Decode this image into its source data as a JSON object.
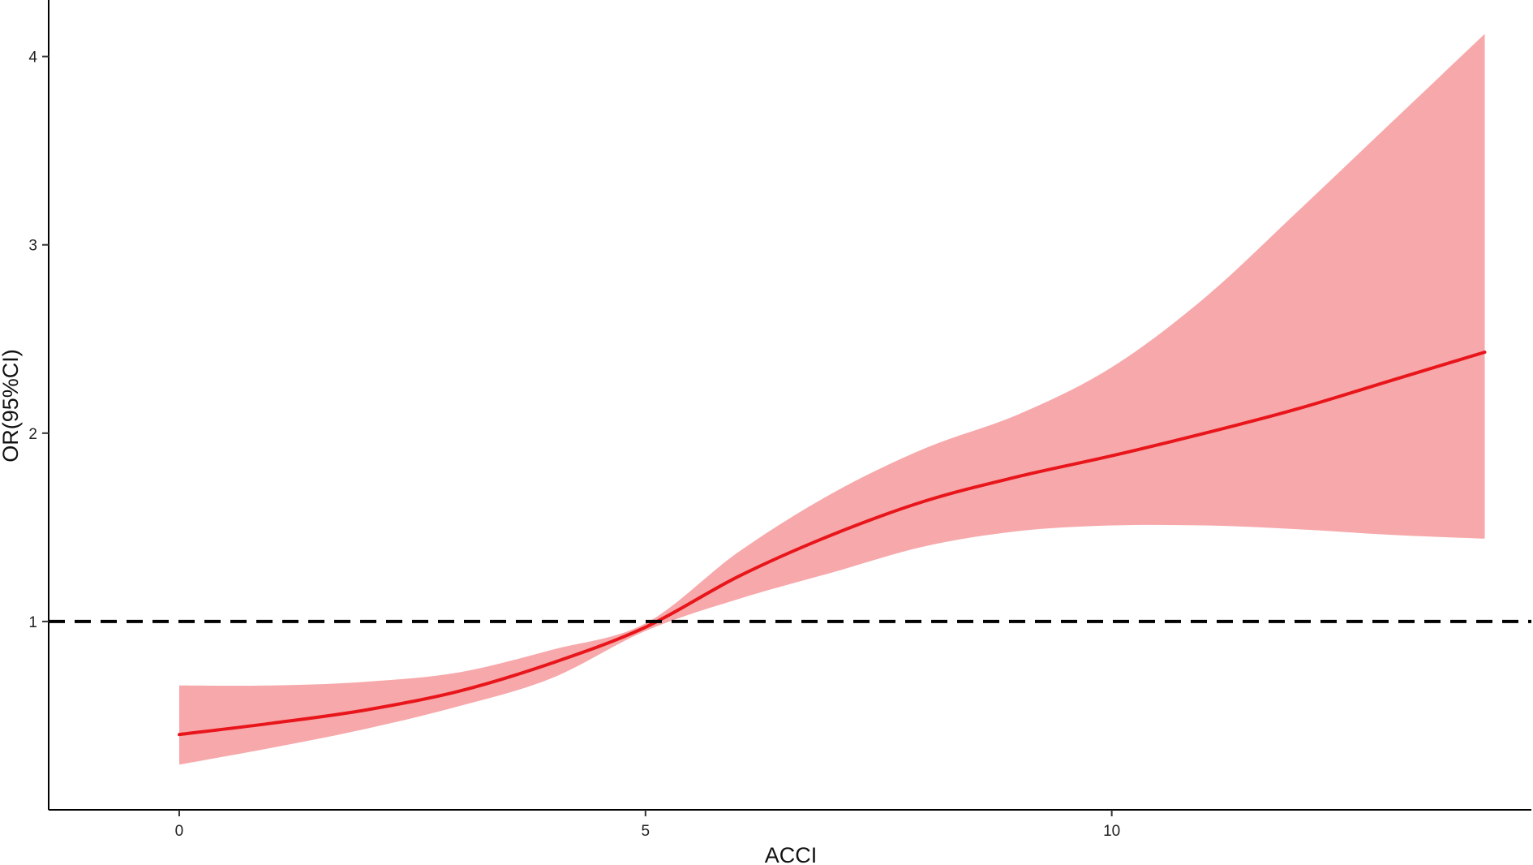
{
  "chart_data": {
    "type": "line",
    "title": "",
    "xlabel": "ACCI",
    "ylabel": "OR(95%CI)",
    "xlim": [
      -1.4,
      14.5
    ],
    "ylim": [
      0,
      4.3
    ],
    "x_ticks": [
      0,
      5,
      10
    ],
    "x_tick_labels": [
      "0",
      "5",
      "10"
    ],
    "y_ticks": [
      1,
      2,
      3,
      4
    ],
    "y_tick_labels": [
      "1",
      "2",
      "3",
      "4"
    ],
    "grid": false,
    "legend": "none",
    "reference_line": {
      "y": 1,
      "style": "dashed",
      "color": "#000000"
    },
    "series": [
      {
        "color": "#e8151b",
        "band_color": "#f7a8aa",
        "x": [
          0,
          1,
          2,
          3,
          4,
          5,
          6,
          7,
          8,
          9,
          10,
          11,
          12,
          13,
          14
        ],
        "y": [
          0.4,
          0.46,
          0.53,
          0.63,
          0.78,
          0.97,
          1.24,
          1.46,
          1.64,
          1.77,
          1.88,
          2.0,
          2.13,
          2.28,
          2.43
        ],
        "lower": [
          0.24,
          0.33,
          0.43,
          0.55,
          0.7,
          0.95,
          1.12,
          1.26,
          1.4,
          1.48,
          1.51,
          1.51,
          1.49,
          1.46,
          1.44
        ],
        "upper": [
          0.66,
          0.66,
          0.68,
          0.73,
          0.85,
          0.99,
          1.37,
          1.68,
          1.92,
          2.1,
          2.35,
          2.72,
          3.18,
          3.65,
          4.12
        ]
      }
    ]
  }
}
